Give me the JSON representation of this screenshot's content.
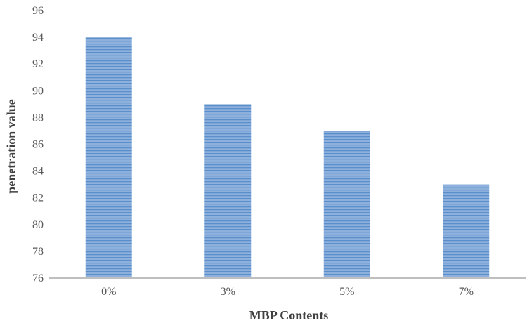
{
  "chart_data": {
    "type": "bar",
    "title": "",
    "xlabel": "MBP Contents",
    "ylabel": "penetration value",
    "categories": [
      "0%",
      "3%",
      "5%",
      "7%"
    ],
    "values": [
      94,
      89,
      87,
      83
    ],
    "ylim": [
      76,
      96
    ],
    "yticks": [
      76,
      78,
      80,
      82,
      84,
      86,
      88,
      90,
      92,
      94,
      96
    ],
    "grid": false,
    "legend": "none",
    "bar_color": "#8db1dc",
    "bar_stripe_color": "#5b8fcc",
    "axis_color": "#bfbfbf"
  }
}
